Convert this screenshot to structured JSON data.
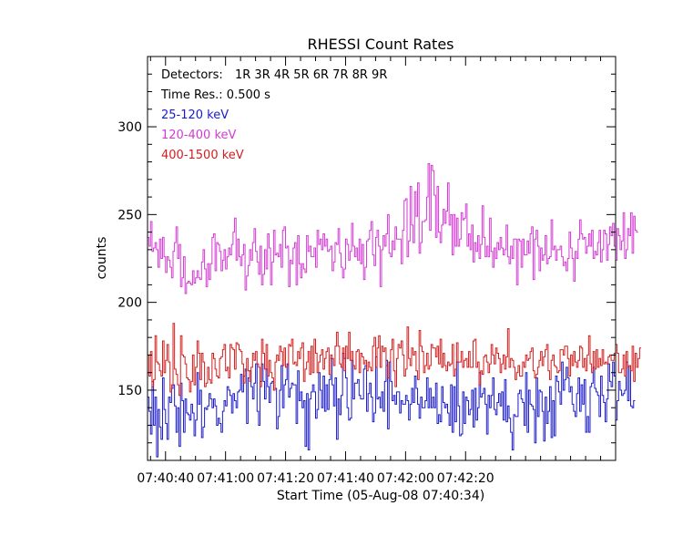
{
  "chart_data": {
    "type": "line",
    "title": "RHESSI Count Rates",
    "xlabel": "Start Time (05-Aug-08 07:40:34)",
    "ylabel": "counts",
    "x_unit": "seconds after start time",
    "x_step_s": 0.5,
    "xlim": [
      0,
      156
    ],
    "ylim": [
      110,
      340
    ],
    "x_tick_values": [
      6,
      26,
      46,
      66,
      86,
      106
    ],
    "x_tick_labels": [
      "07:40:40",
      "07:41:00",
      "07:41:20",
      "07:41:40",
      "07:42:00",
      "07:42:20"
    ],
    "y_tick_values": [
      150,
      200,
      250,
      300
    ],
    "y_tick_labels": [
      "150",
      "200",
      "250",
      "300"
    ],
    "annotations": {
      "detectors_label": "Detectors:",
      "detectors_value": "1R 3R 4R 5R 6R 7R 8R 9R",
      "time_res": "Time Res.: 0.500 s"
    },
    "series": [
      {
        "name": "25-120 keV",
        "color": "#1c1cc8",
        "y": [
          146,
          138,
          125,
          155,
          130,
          146,
          112,
          139,
          129,
          122,
          157,
          139,
          131,
          122,
          146,
          143,
          151,
          153,
          141,
          126,
          140,
          118,
          154,
          144,
          126,
          145,
          137,
          136,
          133,
          142,
          137,
          124,
          133,
          160,
          142,
          150,
          123,
          129,
          140,
          139,
          141,
          148,
          145,
          140,
          145,
          141,
          130,
          134,
          131,
          126,
          138,
          144,
          141,
          152,
          150,
          147,
          137,
          148,
          144,
          140,
          149,
          150,
          159,
          149,
          158,
          162,
          131,
          157,
          161,
          152,
          145,
          154,
          165,
          138,
          130,
          155,
          165,
          155,
          145,
          162,
          152,
          143,
          154,
          155,
          150,
          151,
          128,
          135,
          150,
          164,
          140,
          153,
          156,
          165,
          146,
          151,
          154,
          153,
          153,
          131,
          161,
          144,
          149,
          140,
          144,
          118,
          148,
          116,
          145,
          149,
          153,
          149,
          134,
          139,
          160,
          150,
          140,
          158,
          138,
          153,
          139,
          156,
          168,
          153,
          141,
          157,
          122,
          145,
          136,
          147,
          171,
          168,
          157,
          140,
          133,
          134,
          167,
          145,
          154,
          154,
          156,
          147,
          145,
          145,
          162,
          164,
          138,
          148,
          154,
          146,
          132,
          137,
          169,
          145,
          146,
          140,
          149,
          138,
          155,
          167,
          128,
          166,
          155,
          144,
          147,
          142,
          149,
          149,
          137,
          144,
          142,
          142,
          147,
          144,
          133,
          142,
          151,
          143,
          158,
          151,
          142,
          134,
          146,
          140,
          140,
          144,
          157,
          140,
          151,
          140,
          146,
          140,
          154,
          131,
          136,
          132,
          152,
          143,
          140,
          142,
          137,
          130,
          153,
          126,
          152,
          132,
          166,
          141,
          124,
          125,
          149,
          131,
          146,
          144,
          136,
          139,
          150,
          129,
          151,
          133,
          140,
          160,
          146,
          148,
          151,
          142,
          125,
          147,
          140,
          147,
          157,
          139,
          136,
          143,
          148,
          141,
          149,
          133,
          156,
          132,
          141,
          134,
          126,
          116,
          136,
          135,
          135,
          148,
          150,
          145,
          143,
          130,
          160,
          126,
          150,
          142,
          141,
          139,
          120,
          157,
          135,
          150,
          149,
          138,
          121,
          146,
          131,
          138,
          152,
          123,
          144,
          124,
          158,
          155,
          149,
          142,
          166,
          150,
          156,
          163,
          157,
          149,
          152,
          142,
          138,
          135,
          148,
          157,
          138,
          153,
          142,
          156,
          126,
          135,
          126,
          152,
          154,
          163,
          151,
          149,
          147,
          135,
          158,
          147,
          143,
          132,
          145,
          165,
          155,
          152,
          166,
          158,
          133,
          144,
          155,
          150,
          147,
          148,
          150,
          166,
          144,
          164,
          141,
          140,
          144
        ]
      },
      {
        "name": "120-400 keV",
        "color": "#d23cd2",
        "y": [
          237,
          232,
          246,
          229,
          231,
          234,
          230,
          220,
          236,
          225,
          237,
          226,
          217,
          226,
          224,
          220,
          214,
          229,
          234,
          243,
          225,
          233,
          209,
          214,
          226,
          205,
          211,
          212,
          211,
          210,
          218,
          211,
          214,
          218,
          214,
          213,
          223,
          230,
          219,
          209,
          222,
          213,
          222,
          237,
          239,
          218,
          234,
          233,
          229,
          218,
          224,
          230,
          219,
          226,
          231,
          227,
          233,
          240,
          248,
          224,
          236,
          226,
          221,
          227,
          233,
          207,
          215,
          221,
          230,
          224,
          234,
          242,
          229,
          223,
          216,
          232,
          210,
          216,
          230,
          219,
          239,
          231,
          210,
          223,
          241,
          227,
          228,
          226,
          233,
          220,
          241,
          243,
          231,
          232,
          209,
          224,
          222,
          231,
          234,
          210,
          238,
          222,
          214,
          222,
          219,
          217,
          238,
          229,
          232,
          226,
          226,
          231,
          220,
          241,
          233,
          236,
          230,
          239,
          232,
          236,
          229,
          230,
          232,
          218,
          223,
          234,
          233,
          242,
          228,
          220,
          214,
          219,
          236,
          233,
          224,
          229,
          245,
          232,
          226,
          231,
          224,
          236,
          222,
          233,
          213,
          220,
          235,
          236,
          241,
          246,
          227,
          221,
          237,
          241,
          232,
          209,
          230,
          238,
          232,
          239,
          250,
          228,
          226,
          235,
          230,
          243,
          236,
          236,
          236,
          222,
          241,
          258,
          259,
          226,
          235,
          266,
          244,
          234,
          263,
          249,
          268,
          228,
          234,
          246,
          246,
          247,
          260,
          279,
          241,
          278,
          275,
          261,
          237,
          266,
          240,
          234,
          244,
          253,
          245,
          252,
          268,
          244,
          250,
          227,
          250,
          232,
          248,
          232,
          236,
          251,
          247,
          248,
          256,
          232,
          239,
          230,
          244,
          223,
          234,
          229,
          238,
          225,
          233,
          255,
          237,
          226,
          232,
          226,
          248,
          229,
          220,
          231,
          225,
          234,
          230,
          237,
          231,
          227,
          230,
          244,
          226,
          222,
          232,
          225,
          236,
          236,
          210,
          236,
          235,
          220,
          236,
          227,
          227,
          235,
          228,
          239,
          243,
          213,
          236,
          241,
          232,
          218,
          231,
          224,
          227,
          238,
          222,
          225,
          226,
          247,
          230,
          232,
          224,
          230,
          230,
          232,
          226,
          221,
          223,
          218,
          225,
          240,
          231,
          225,
          212,
          229,
          225,
          236,
          247,
          239,
          236,
          237,
          228,
          232,
          239,
          232,
          241,
          225,
          229,
          227,
          234,
          241,
          223,
          230,
          241,
          239,
          224,
          233,
          243,
          238,
          245,
          232,
          224,
          242,
          238,
          230,
          235,
          251,
          225,
          230,
          242,
          238,
          251,
          228,
          249,
          241,
          240
        ]
      },
      {
        "name": "400-1500 keV",
        "color": "#d21e1e",
        "y": [
          170,
          158,
          172,
          152,
          156,
          181,
          166,
          165,
          161,
          158,
          178,
          160,
          167,
          176,
          166,
          149,
          153,
          188,
          162,
          159,
          153,
          147,
          181,
          170,
          169,
          165,
          157,
          156,
          149,
          155,
          170,
          153,
          163,
          178,
          171,
          156,
          171,
          166,
          152,
          154,
          163,
          156,
          154,
          171,
          168,
          162,
          158,
          157,
          168,
          169,
          173,
          176,
          161,
          163,
          157,
          176,
          174,
          173,
          162,
          177,
          176,
          173,
          172,
          165,
          154,
          161,
          168,
          161,
          155,
          163,
          171,
          167,
          172,
          165,
          163,
          152,
          179,
          171,
          162,
          176,
          158,
          167,
          160,
          157,
          150,
          166,
          170,
          167,
          175,
          172,
          164,
          174,
          163,
          164,
          176,
          175,
          179,
          165,
          166,
          164,
          172,
          168,
          174,
          177,
          155,
          162,
          166,
          172,
          159,
          175,
          160,
          179,
          171,
          160,
          166,
          170,
          173,
          162,
          168,
          172,
          174,
          159,
          170,
          168,
          164,
          175,
          183,
          175,
          165,
          163,
          174,
          161,
          175,
          168,
          183,
          167,
          172,
          164,
          162,
          172,
          173,
          160,
          171,
          169,
          165,
          167,
          161,
          166,
          163,
          161,
          175,
          180,
          163,
          174,
          181,
          163,
          175,
          172,
          174,
          164,
          157,
          166,
          173,
          179,
          161,
          152,
          168,
          176,
          174,
          178,
          170,
          158,
          162,
          186,
          168,
          164,
          174,
          170,
          172,
          161,
          156,
          184,
          175,
          172,
          160,
          164,
          171,
          162,
          164,
          176,
          174,
          174,
          169,
          175,
          165,
          179,
          163,
          171,
          164,
          161,
          166,
          164,
          165,
          176,
          158,
          162,
          177,
          166,
          166,
          172,
          163,
          167,
          168,
          163,
          172,
          163,
          163,
          178,
          179,
          163,
          166,
          153,
          161,
          159,
          169,
          170,
          166,
          160,
          165,
          176,
          170,
          165,
          174,
          171,
          168,
          160,
          165,
          170,
          162,
          169,
          185,
          163,
          168,
          167,
          163,
          156,
          160,
          164,
          158,
          158,
          166,
          163,
          170,
          167,
          168,
          172,
          174,
          161,
          157,
          159,
          163,
          167,
          172,
          164,
          169,
          173,
          176,
          161,
          156,
          167,
          170,
          164,
          163,
          160,
          161,
          173,
          173,
          170,
          175,
          175,
          168,
          158,
          170,
          164,
          172,
          166,
          163,
          167,
          175,
          174,
          163,
          168,
          161,
          170,
          181,
          165,
          160,
          172,
          162,
          173,
          163,
          168,
          164,
          173,
          165,
          166,
          165,
          169,
          170,
          167,
          167,
          171,
          176,
          171,
          160,
          160,
          162,
          170,
          158,
          172,
          163,
          164,
          161,
          175,
          155,
          171,
          163,
          168,
          174
        ]
      }
    ]
  }
}
